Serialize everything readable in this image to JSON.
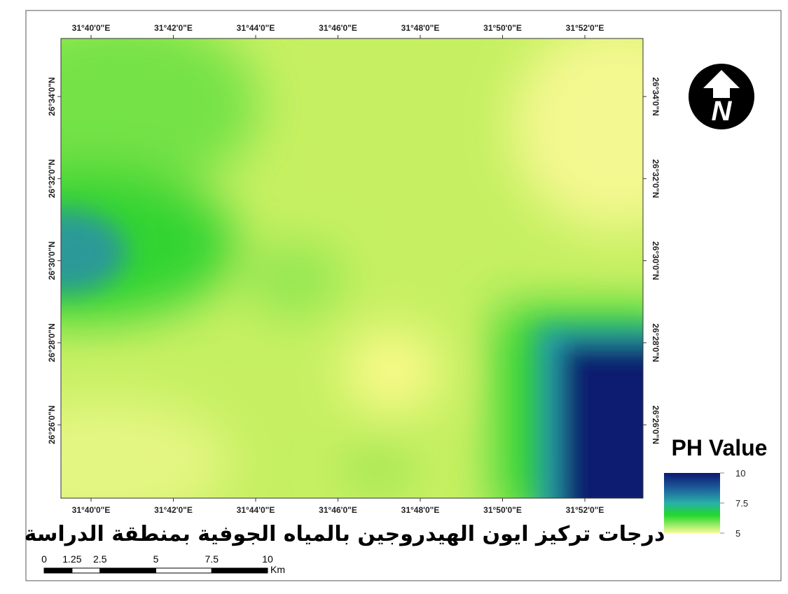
{
  "title": "درجات تركيز ايون الهيدروجين بالمياه الجوفية بمنطقة الدراسة",
  "longitudes": [
    "31°40'0\"E",
    "31°42'0\"E",
    "31°44'0\"E",
    "31°46'0\"E",
    "31°48'0\"E",
    "31°50'0\"E",
    "31°52'0\"E"
  ],
  "latitudes": [
    "26°34'0\"N",
    "26°32'0\"N",
    "26°30'0\"N",
    "26°28'0\"N",
    "26°26'0\"N"
  ],
  "legend": {
    "title": "PH Value",
    "ticks": [
      10,
      7.5,
      5
    ]
  },
  "scale_bar": {
    "ticks": [
      0,
      1.25,
      2.5,
      5,
      7.5,
      10
    ],
    "unit": "Km"
  }
}
